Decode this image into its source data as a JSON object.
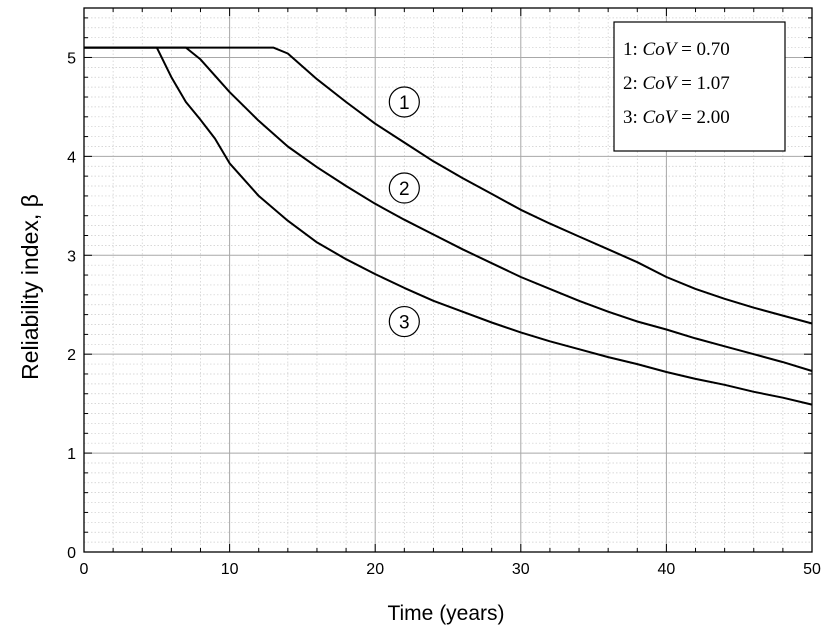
{
  "chart_data": {
    "type": "line",
    "xlabel": "Time (years)",
    "ylabel": "Reliability index, β",
    "xlim": [
      0,
      50
    ],
    "ylim": [
      0,
      5.5
    ],
    "x_ticks": [
      "0",
      "10",
      "20",
      "30",
      "40",
      "50"
    ],
    "y_ticks": [
      "0",
      "1",
      "2",
      "3",
      "4",
      "5"
    ],
    "grid": true,
    "legend_position": "top-right",
    "legend": [
      {
        "prefix": "1: ",
        "var": "CoV",
        "value": " = 0.70"
      },
      {
        "prefix": "2: ",
        "var": "CoV",
        "value": " = 1.07"
      },
      {
        "prefix": "3: ",
        "var": "CoV",
        "value": " = 2.00"
      }
    ],
    "series": [
      {
        "label": "1",
        "label_at": [
          22,
          4.55
        ],
        "points": [
          [
            0,
            5.1
          ],
          [
            13,
            5.1
          ],
          [
            14,
            5.04
          ],
          [
            16,
            4.78
          ],
          [
            18,
            4.55
          ],
          [
            20,
            4.33
          ],
          [
            22,
            4.14
          ],
          [
            24,
            3.95
          ],
          [
            26,
            3.78
          ],
          [
            28,
            3.62
          ],
          [
            30,
            3.46
          ],
          [
            32,
            3.32
          ],
          [
            34,
            3.19
          ],
          [
            36,
            3.06
          ],
          [
            38,
            2.93
          ],
          [
            40,
            2.78
          ],
          [
            42,
            2.66
          ],
          [
            44,
            2.56
          ],
          [
            46,
            2.47
          ],
          [
            48,
            2.39
          ],
          [
            50,
            2.31
          ]
        ]
      },
      {
        "label": "2",
        "label_at": [
          22,
          3.68
        ],
        "points": [
          [
            0,
            5.1
          ],
          [
            7,
            5.1
          ],
          [
            8,
            4.98
          ],
          [
            10,
            4.65
          ],
          [
            12,
            4.36
          ],
          [
            14,
            4.1
          ],
          [
            16,
            3.89
          ],
          [
            18,
            3.7
          ],
          [
            20,
            3.52
          ],
          [
            22,
            3.36
          ],
          [
            24,
            3.21
          ],
          [
            26,
            3.06
          ],
          [
            28,
            2.92
          ],
          [
            30,
            2.78
          ],
          [
            32,
            2.66
          ],
          [
            34,
            2.54
          ],
          [
            36,
            2.43
          ],
          [
            38,
            2.33
          ],
          [
            40,
            2.25
          ],
          [
            42,
            2.16
          ],
          [
            44,
            2.08
          ],
          [
            46,
            2.0
          ],
          [
            48,
            1.92
          ],
          [
            50,
            1.83
          ]
        ]
      },
      {
        "label": "3",
        "label_at": [
          22,
          2.33
        ],
        "points": [
          [
            0,
            5.1
          ],
          [
            5,
            5.1
          ],
          [
            6,
            4.8
          ],
          [
            7,
            4.55
          ],
          [
            8,
            4.37
          ],
          [
            9,
            4.18
          ],
          [
            10,
            3.93
          ],
          [
            12,
            3.6
          ],
          [
            14,
            3.35
          ],
          [
            16,
            3.13
          ],
          [
            18,
            2.96
          ],
          [
            20,
            2.81
          ],
          [
            22,
            2.67
          ],
          [
            24,
            2.54
          ],
          [
            26,
            2.43
          ],
          [
            28,
            2.32
          ],
          [
            30,
            2.22
          ],
          [
            32,
            2.13
          ],
          [
            34,
            2.05
          ],
          [
            36,
            1.97
          ],
          [
            38,
            1.9
          ],
          [
            40,
            1.82
          ],
          [
            42,
            1.75
          ],
          [
            44,
            1.69
          ],
          [
            46,
            1.62
          ],
          [
            48,
            1.56
          ],
          [
            50,
            1.49
          ]
        ]
      }
    ]
  }
}
